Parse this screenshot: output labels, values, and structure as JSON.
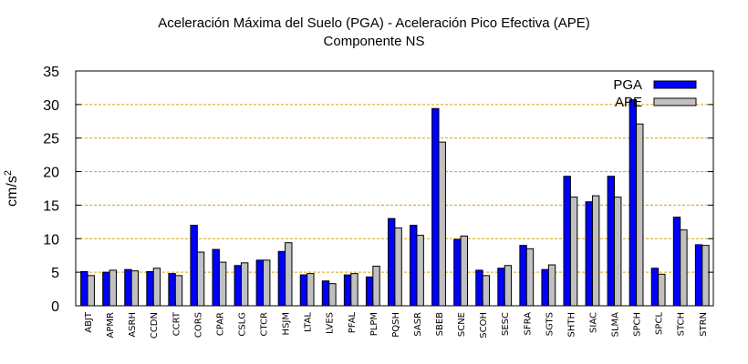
{
  "chart_data": {
    "type": "bar",
    "title": "Aceleración Máxima del Suelo (PGA) -  Aceleración Pico Efectiva (APE)",
    "subtitle": "Componente NS",
    "ylabel": "cm/s",
    "ylabel_sup": "2",
    "xlabel": "",
    "ylim": [
      0,
      35
    ],
    "yticks": [
      0,
      5,
      10,
      15,
      20,
      25,
      30,
      35
    ],
    "grid": "horizontal dashed",
    "legend_position": "top-right",
    "categories": [
      "ABJT",
      "APMR",
      "ASRH",
      "CCDN",
      "CCRT",
      "CORS",
      "CPAR",
      "CSLG",
      "CTCR",
      "HSJM",
      "LTAL",
      "LVES",
      "PFAL",
      "PLPM",
      "PQSH",
      "SASR",
      "SBEB",
      "SCNE",
      "SCOH",
      "SESC",
      "SFRA",
      "SGTS",
      "SHTH",
      "SIAC",
      "SLMA",
      "SPCH",
      "SPCL",
      "STCH",
      "STRN"
    ],
    "series": [
      {
        "name": "PGA",
        "color": "#0000ff",
        "values": [
          5.1,
          5.0,
          5.4,
          5.1,
          4.8,
          12.0,
          8.4,
          6.0,
          6.8,
          8.1,
          4.6,
          3.7,
          4.6,
          4.3,
          13.0,
          12.0,
          29.4,
          9.9,
          5.3,
          5.6,
          9.0,
          5.4,
          19.3,
          15.5,
          19.3,
          30.7,
          5.6,
          13.2,
          9.1
        ]
      },
      {
        "name": "APE",
        "color": "#c0c0c0",
        "values": [
          4.5,
          5.3,
          5.2,
          5.6,
          4.5,
          8.0,
          6.5,
          6.4,
          6.8,
          9.4,
          4.8,
          3.3,
          4.8,
          5.9,
          11.6,
          10.5,
          24.4,
          10.4,
          4.5,
          6.0,
          8.5,
          6.1,
          16.2,
          16.4,
          16.2,
          27.1,
          4.7,
          11.3,
          9.0
        ]
      }
    ]
  }
}
